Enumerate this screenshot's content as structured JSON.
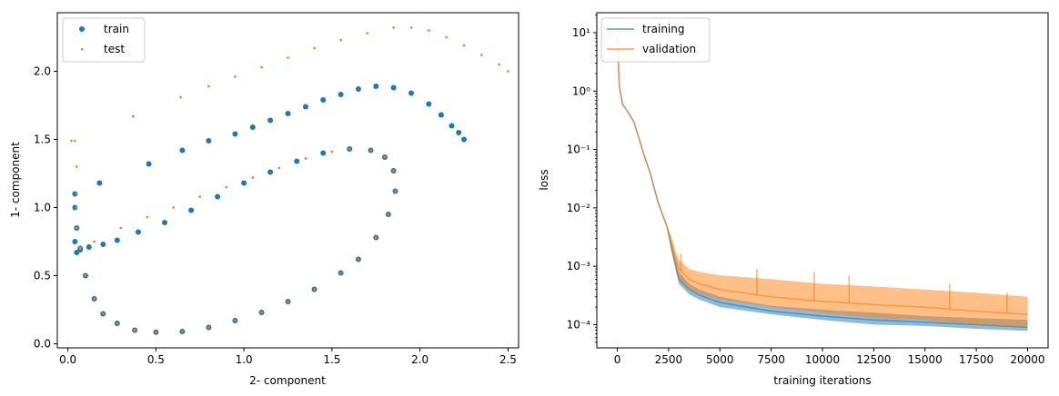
{
  "colors": {
    "train": "#1f77b4",
    "test": "#ff7f0e",
    "training": "#1f77b4",
    "validation": "#ff7f0e"
  },
  "chart_data": [
    {
      "type": "scatter",
      "title": "",
      "xlabel": "2- component",
      "ylabel": "1- component",
      "xlim": [
        -0.06,
        2.56
      ],
      "ylim": [
        -0.03,
        2.43
      ],
      "xticks": [
        0.0,
        0.5,
        1.0,
        1.5,
        2.0,
        2.5
      ],
      "xtick_labels": [
        "0.0",
        "0.5",
        "1.0",
        "1.5",
        "2.0",
        "2.5"
      ],
      "yticks": [
        0.0,
        0.5,
        1.0,
        1.5,
        2.0
      ],
      "ytick_labels": [
        "0.0",
        "0.5",
        "1.0",
        "1.5",
        "2.0"
      ],
      "legend": {
        "position": "upper-left",
        "entries": [
          "train",
          "test"
        ]
      },
      "series": [
        {
          "name": "train",
          "points": [
            [
              0.04,
              1.1
            ],
            [
              0.04,
              1.0
            ],
            [
              0.05,
              0.85
            ],
            [
              0.07,
              0.7
            ],
            [
              0.1,
              0.5
            ],
            [
              0.15,
              0.33
            ],
            [
              0.2,
              0.22
            ],
            [
              0.28,
              0.15
            ],
            [
              0.38,
              0.1
            ],
            [
              0.5,
              0.085
            ],
            [
              0.65,
              0.09
            ],
            [
              0.8,
              0.12
            ],
            [
              0.95,
              0.17
            ],
            [
              1.1,
              0.23
            ],
            [
              1.25,
              0.31
            ],
            [
              1.4,
              0.4
            ],
            [
              1.55,
              0.52
            ],
            [
              1.65,
              0.62
            ],
            [
              1.75,
              0.78
            ],
            [
              1.82,
              0.95
            ],
            [
              1.86,
              1.12
            ],
            [
              1.85,
              1.27
            ],
            [
              1.8,
              1.37
            ],
            [
              1.72,
              1.42
            ],
            [
              1.6,
              1.43
            ],
            [
              1.45,
              1.4
            ],
            [
              1.3,
              1.34
            ],
            [
              1.15,
              1.26
            ],
            [
              1.0,
              1.18
            ],
            [
              0.85,
              1.08
            ],
            [
              0.7,
              0.98
            ],
            [
              0.55,
              0.89
            ],
            [
              0.4,
              0.82
            ],
            [
              0.28,
              0.76
            ],
            [
              0.2,
              0.73
            ],
            [
              0.12,
              0.71
            ],
            [
              0.07,
              0.69
            ],
            [
              0.05,
              0.67
            ],
            [
              0.04,
              0.75
            ],
            [
              0.18,
              1.18
            ],
            [
              0.46,
              1.32
            ],
            [
              0.65,
              1.42
            ],
            [
              0.8,
              1.49
            ],
            [
              0.95,
              1.54
            ],
            [
              1.05,
              1.59
            ],
            [
              1.15,
              1.64
            ],
            [
              1.25,
              1.69
            ],
            [
              1.35,
              1.74
            ],
            [
              1.45,
              1.79
            ],
            [
              1.55,
              1.83
            ],
            [
              1.65,
              1.87
            ],
            [
              1.75,
              1.89
            ],
            [
              1.85,
              1.88
            ],
            [
              1.95,
              1.84
            ],
            [
              2.05,
              1.76
            ],
            [
              2.12,
              1.68
            ],
            [
              2.18,
              1.6
            ],
            [
              2.22,
              1.55
            ],
            [
              2.25,
              1.5
            ]
          ]
        },
        {
          "name": "test",
          "points": [
            [
              0.02,
              1.49
            ],
            [
              0.04,
              1.49
            ],
            [
              0.05,
              1.3
            ],
            [
              0.07,
              0.7
            ],
            [
              0.15,
              0.75
            ],
            [
              0.3,
              0.85
            ],
            [
              0.45,
              0.93
            ],
            [
              0.6,
              1.0
            ],
            [
              0.75,
              1.08
            ],
            [
              0.9,
              1.15
            ],
            [
              1.05,
              1.22
            ],
            [
              1.2,
              1.29
            ],
            [
              1.35,
              1.36
            ],
            [
              1.5,
              1.41
            ],
            [
              1.6,
              1.43
            ],
            [
              1.72,
              1.42
            ],
            [
              1.8,
              1.37
            ],
            [
              1.85,
              1.27
            ],
            [
              1.86,
              1.12
            ],
            [
              1.82,
              0.95
            ],
            [
              1.75,
              0.78
            ],
            [
              1.65,
              0.62
            ],
            [
              1.55,
              0.52
            ],
            [
              1.4,
              0.4
            ],
            [
              1.25,
              0.31
            ],
            [
              1.1,
              0.23
            ],
            [
              0.95,
              0.17
            ],
            [
              0.8,
              0.12
            ],
            [
              0.65,
              0.09
            ],
            [
              0.5,
              0.085
            ],
            [
              0.38,
              0.1
            ],
            [
              0.28,
              0.15
            ],
            [
              0.2,
              0.22
            ],
            [
              0.15,
              0.33
            ],
            [
              0.1,
              0.5
            ],
            [
              0.07,
              0.7
            ],
            [
              0.05,
              0.85
            ],
            [
              0.05,
              1.0
            ],
            [
              0.05,
              1.1
            ],
            [
              0.37,
              1.67
            ],
            [
              0.64,
              1.81
            ],
            [
              0.8,
              1.89
            ],
            [
              0.95,
              1.96
            ],
            [
              1.1,
              2.03
            ],
            [
              1.25,
              2.1
            ],
            [
              1.4,
              2.17
            ],
            [
              1.55,
              2.23
            ],
            [
              1.7,
              2.28
            ],
            [
              1.85,
              2.32
            ],
            [
              1.95,
              2.32
            ],
            [
              2.05,
              2.3
            ],
            [
              2.15,
              2.25
            ],
            [
              2.25,
              2.19
            ],
            [
              2.35,
              2.12
            ],
            [
              2.45,
              2.05
            ],
            [
              2.5,
              2.0
            ]
          ]
        }
      ]
    },
    {
      "type": "line",
      "title": "",
      "xlabel": "training iterations",
      "ylabel": "loss",
      "yscale": "log",
      "xlim": [
        -1000,
        21000
      ],
      "ylim": [
        4e-05,
        22
      ],
      "xticks": [
        0,
        2500,
        5000,
        7500,
        10000,
        12500,
        15000,
        17500,
        20000
      ],
      "xtick_labels": [
        "0",
        "2500",
        "5000",
        "7500",
        "10000",
        "12500",
        "15000",
        "17500",
        "20000"
      ],
      "yticks": [
        0.0001,
        0.001,
        0.01,
        0.1,
        1,
        10
      ],
      "ytick_labels": [
        "10⁻⁴",
        "10⁻³",
        "10⁻²",
        "10⁻¹",
        "10⁰",
        "10¹"
      ],
      "legend": {
        "position": "upper-left",
        "entries": [
          "training",
          "validation"
        ]
      },
      "series": [
        {
          "name": "training",
          "x": [
            0,
            100,
            250,
            500,
            800,
            1000,
            1300,
            1600,
            2000,
            2400,
            2600,
            2800,
            3000,
            3500,
            4000,
            5000,
            7500,
            10000,
            12500,
            15000,
            17500,
            20000
          ],
          "y": [
            8,
            1.2,
            0.6,
            0.45,
            0.3,
            0.18,
            0.08,
            0.04,
            0.012,
            0.005,
            0.0025,
            0.0012,
            0.0006,
            0.0004,
            0.00032,
            0.00024,
            0.00017,
            0.00014,
            0.00012,
            0.00011,
            0.0001,
            9e-05
          ],
          "band_low": [
            8,
            1.2,
            0.6,
            0.45,
            0.3,
            0.18,
            0.08,
            0.04,
            0.012,
            0.005,
            0.002,
            0.001,
            0.0005,
            0.00033,
            0.00027,
            0.0002,
            0.00015,
            0.00012,
            0.0001,
            9.5e-05,
            8.5e-05,
            7.8e-05
          ],
          "band_high": [
            8,
            1.2,
            0.6,
            0.45,
            0.3,
            0.18,
            0.08,
            0.04,
            0.012,
            0.005,
            0.003,
            0.0015,
            0.0008,
            0.0005,
            0.0004,
            0.0003,
            0.00021,
            0.00018,
            0.00016,
            0.00014,
            0.00013,
            0.00012
          ]
        },
        {
          "name": "validation",
          "x": [
            0,
            100,
            250,
            500,
            800,
            1000,
            1300,
            1600,
            2000,
            2400,
            2600,
            2800,
            3000,
            3500,
            4000,
            5000,
            7500,
            10000,
            12500,
            15000,
            17500,
            20000
          ],
          "y": [
            8,
            1.2,
            0.6,
            0.45,
            0.3,
            0.18,
            0.08,
            0.04,
            0.012,
            0.005,
            0.0028,
            0.0015,
            0.0009,
            0.0006,
            0.0005,
            0.0004,
            0.0003,
            0.00025,
            0.00022,
            0.0002,
            0.00017,
            0.00015
          ],
          "band_low": [
            8,
            1.2,
            0.6,
            0.45,
            0.3,
            0.18,
            0.08,
            0.04,
            0.012,
            0.005,
            0.0022,
            0.0011,
            0.0006,
            0.0004,
            0.00034,
            0.00027,
            0.0002,
            0.00016,
            0.00013,
            0.00012,
            0.0001,
            9e-05
          ],
          "band_high": [
            8,
            1.2,
            0.6,
            0.45,
            0.3,
            0.18,
            0.08,
            0.04,
            0.012,
            0.005,
            0.0035,
            0.002,
            0.0013,
            0.0009,
            0.0008,
            0.0007,
            0.0006,
            0.0005,
            0.00045,
            0.0004,
            0.00035,
            0.0003
          ],
          "spikes": [
            [
              3100,
              0.0016
            ],
            [
              6800,
              0.0009
            ],
            [
              9600,
              0.0008
            ],
            [
              11300,
              0.0007
            ],
            [
              16200,
              0.0005
            ],
            [
              19000,
              0.00035
            ]
          ]
        }
      ]
    }
  ]
}
